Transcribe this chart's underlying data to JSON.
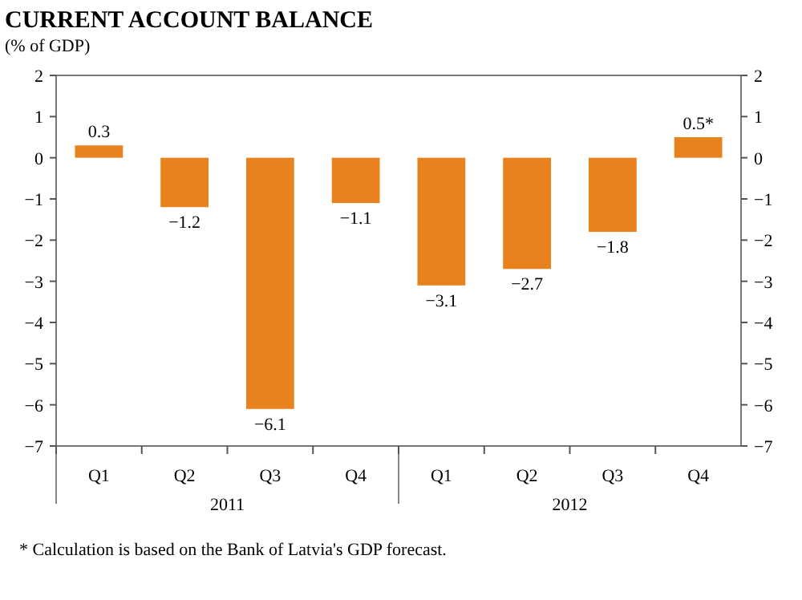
{
  "chart_data": {
    "type": "bar",
    "title": "CURRENT ACCOUNT BALANCE",
    "subtitle": "(% of GDP)",
    "categories": [
      "Q1",
      "Q2",
      "Q3",
      "Q4",
      "Q1",
      "Q2",
      "Q3",
      "Q4"
    ],
    "values": [
      0.3,
      -1.2,
      -6.1,
      -1.1,
      -3.1,
      -2.7,
      -1.8,
      0.5
    ],
    "value_labels": [
      "0.3",
      "−1.2",
      "−6.1",
      "−1.1",
      "−3.1",
      "−2.7",
      "−1.8",
      "0.5*"
    ],
    "color": "#e8821e",
    "ylim": [
      -7,
      2
    ],
    "yticks": [
      {
        "value": -7,
        "label": "−7"
      },
      {
        "value": -6,
        "label": "−6"
      },
      {
        "value": -5,
        "label": "−5"
      },
      {
        "value": -4,
        "label": "−4"
      },
      {
        "value": -3,
        "label": "−3"
      },
      {
        "value": -2,
        "label": "−2"
      },
      {
        "value": -1,
        "label": "−1"
      },
      0,
      1,
      2
    ],
    "y2lim": [
      -7,
      2
    ],
    "y2ticks": [
      {
        "value": -7,
        "label": "−7"
      },
      {
        "value": -6,
        "label": "−6"
      },
      {
        "value": -5,
        "label": "−5"
      },
      {
        "value": -4,
        "label": "−4"
      },
      {
        "value": -3,
        "label": "−3"
      },
      {
        "value": -2,
        "label": "−2"
      },
      {
        "value": -1,
        "label": "−1"
      },
      0,
      1,
      2
    ],
    "annotations": [
      "2011",
      "2012",
      "* Calculation is based on the Bank of Latvia's GDP forecast."
    ]
  }
}
